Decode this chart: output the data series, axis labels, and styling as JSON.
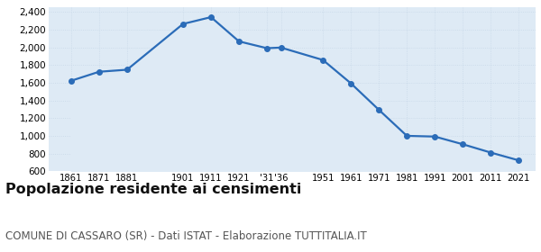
{
  "years": [
    1861,
    1871,
    1881,
    1901,
    1911,
    1921,
    1931,
    1936,
    1951,
    1961,
    1971,
    1981,
    1991,
    2001,
    2011,
    2021
  ],
  "population": [
    1623,
    1725,
    1748,
    2265,
    2342,
    2068,
    1991,
    1998,
    1858,
    1594,
    1295,
    1001,
    993,
    906,
    812,
    724
  ],
  "line_color": "#2b6cb8",
  "fill_color": "#deeaf5",
  "dot_color": "#2b6cb8",
  "background_color": "#ffffff",
  "grid_color": "#c8d8e8",
  "ylim": [
    600,
    2450
  ],
  "yticks": [
    600,
    800,
    1000,
    1200,
    1400,
    1600,
    1800,
    2000,
    2200,
    2400
  ],
  "title": "Popolazione residente ai censimenti",
  "subtitle": "COMUNE DI CASSARO (SR) - Dati ISTAT - Elaborazione TUTTITALIA.IT",
  "title_fontsize": 11.5,
  "subtitle_fontsize": 8.5
}
